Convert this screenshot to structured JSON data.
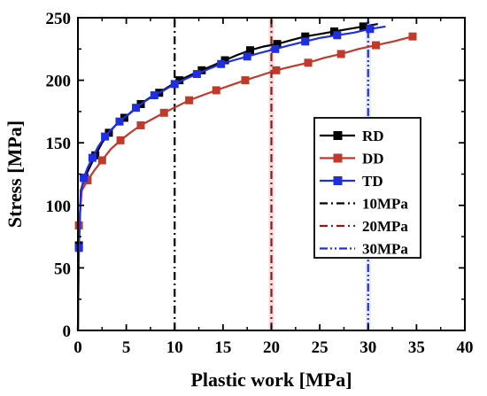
{
  "chart_data": {
    "type": "line",
    "xlabel": "Plastic work [MPa]",
    "ylabel": "Stress [MPa]",
    "xlim": [
      0,
      40
    ],
    "ylim": [
      0,
      250
    ],
    "x_ticks": [
      "0",
      "5",
      "10",
      "15",
      "20",
      "25",
      "30",
      "35",
      "40"
    ],
    "y_ticks": [
      "0",
      "50",
      "100",
      "150",
      "200",
      "250"
    ],
    "grid": false,
    "legend_position": "right",
    "series": [
      {
        "name": "RD",
        "color": "#000000",
        "marker": "square",
        "x": [
          0,
          0.1,
          0.3,
          0.7,
          1.2,
          1.8,
          2.5,
          3.2,
          4.0,
          4.8,
          5.6,
          6.5,
          7.4,
          8.4,
          9.4,
          10.5,
          11.6,
          12.8,
          14.0,
          15.2,
          16.4,
          17.8,
          19.2,
          20.6,
          22.0,
          23.5,
          25.0,
          26.5,
          28.0,
          29.5,
          31.0
        ],
        "y": [
          0,
          68,
          112,
          122,
          130,
          140,
          150,
          158,
          165,
          170,
          175,
          181,
          186,
          190,
          195,
          200,
          204,
          208,
          212,
          216,
          220,
          224,
          227,
          229,
          232,
          235,
          237,
          239,
          241,
          243,
          245
        ]
      },
      {
        "name": "DD",
        "color": "#c0392b",
        "marker": "square",
        "x": [
          0,
          0.1,
          0.4,
          1.0,
          1.7,
          2.5,
          3.4,
          4.4,
          5.4,
          6.5,
          7.7,
          8.9,
          10.2,
          11.5,
          12.9,
          14.3,
          15.8,
          17.3,
          18.9,
          20.5,
          22.1,
          23.8,
          25.5,
          27.2,
          29.0,
          30.8,
          32.6,
          34.6
        ],
        "y": [
          0,
          84,
          112,
          120,
          128,
          136,
          145,
          152,
          158,
          164,
          169,
          174,
          179,
          184,
          188,
          192,
          196,
          200,
          204,
          208,
          211,
          214,
          218,
          221,
          225,
          228,
          231,
          235
        ]
      },
      {
        "name": "TD",
        "color": "#1f2fe0",
        "marker": "square",
        "x": [
          0,
          0.1,
          0.3,
          0.6,
          1.0,
          1.5,
          2.1,
          2.8,
          3.5,
          4.3,
          5.1,
          6.0,
          6.9,
          7.9,
          8.9,
          10.0,
          11.1,
          12.3,
          13.5,
          14.8,
          16.1,
          17.5,
          18.9,
          20.4,
          21.9,
          23.5,
          25.1,
          26.8,
          28.5,
          30.2,
          31.8
        ],
        "y": [
          0,
          66,
          110,
          122,
          130,
          138,
          147,
          155,
          161,
          167,
          172,
          178,
          183,
          188,
          192,
          197,
          201,
          205,
          209,
          213,
          216,
          219,
          222,
          225,
          228,
          231,
          234,
          236,
          238,
          241,
          243
        ]
      },
      {
        "name": "10MPa",
        "color": "#000000",
        "style": "dashdot",
        "x": [
          10,
          10
        ],
        "y": [
          0,
          250
        ]
      },
      {
        "name": "20MPa",
        "color": "#8b1a1a",
        "style": "dashdot",
        "x": [
          20,
          20
        ],
        "y": [
          0,
          250
        ]
      },
      {
        "name": "30MPa",
        "color": "#1f2fe0",
        "style": "dashdotdot",
        "x": [
          30,
          30
        ],
        "y": [
          0,
          250
        ]
      }
    ]
  }
}
